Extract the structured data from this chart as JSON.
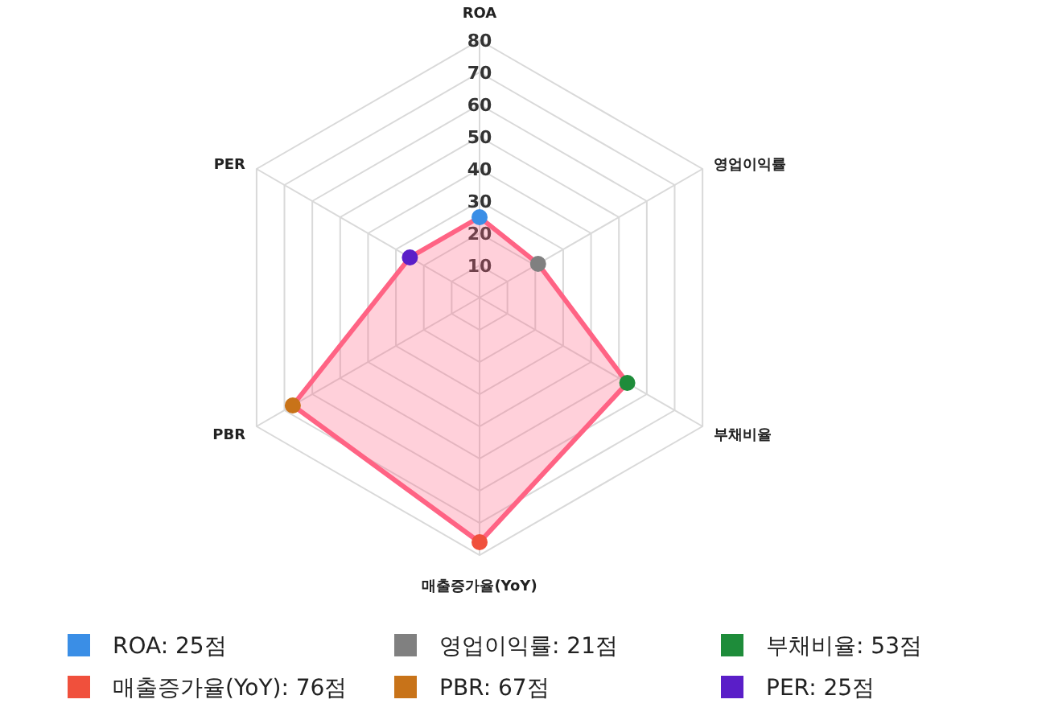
{
  "chart_data": {
    "type": "radar",
    "categories": [
      "ROA",
      "영업이익률",
      "부채비율",
      "매출증가율(YoY)",
      "PBR",
      "PER"
    ],
    "series": [
      {
        "color": "#ff6384",
        "values": [
          25,
          21,
          53,
          76,
          67,
          25
        ],
        "colors": [
          "#3a8ee6",
          "#808080",
          "#1e8c3a",
          "#f0503c",
          "#c87319",
          "#5a1ec8"
        ]
      }
    ],
    "ylim": [
      0,
      80
    ],
    "yticks": [
      10,
      20,
      30,
      40,
      50,
      60,
      70,
      80
    ],
    "grid": true,
    "marker": "circle",
    "annotations": [
      "ROA: 25점",
      "영업이익률: 21점",
      "부채비율: 53점",
      "매출증가율(YoY): 76점",
      "PBR: 67점",
      "PER: 25점"
    ]
  }
}
